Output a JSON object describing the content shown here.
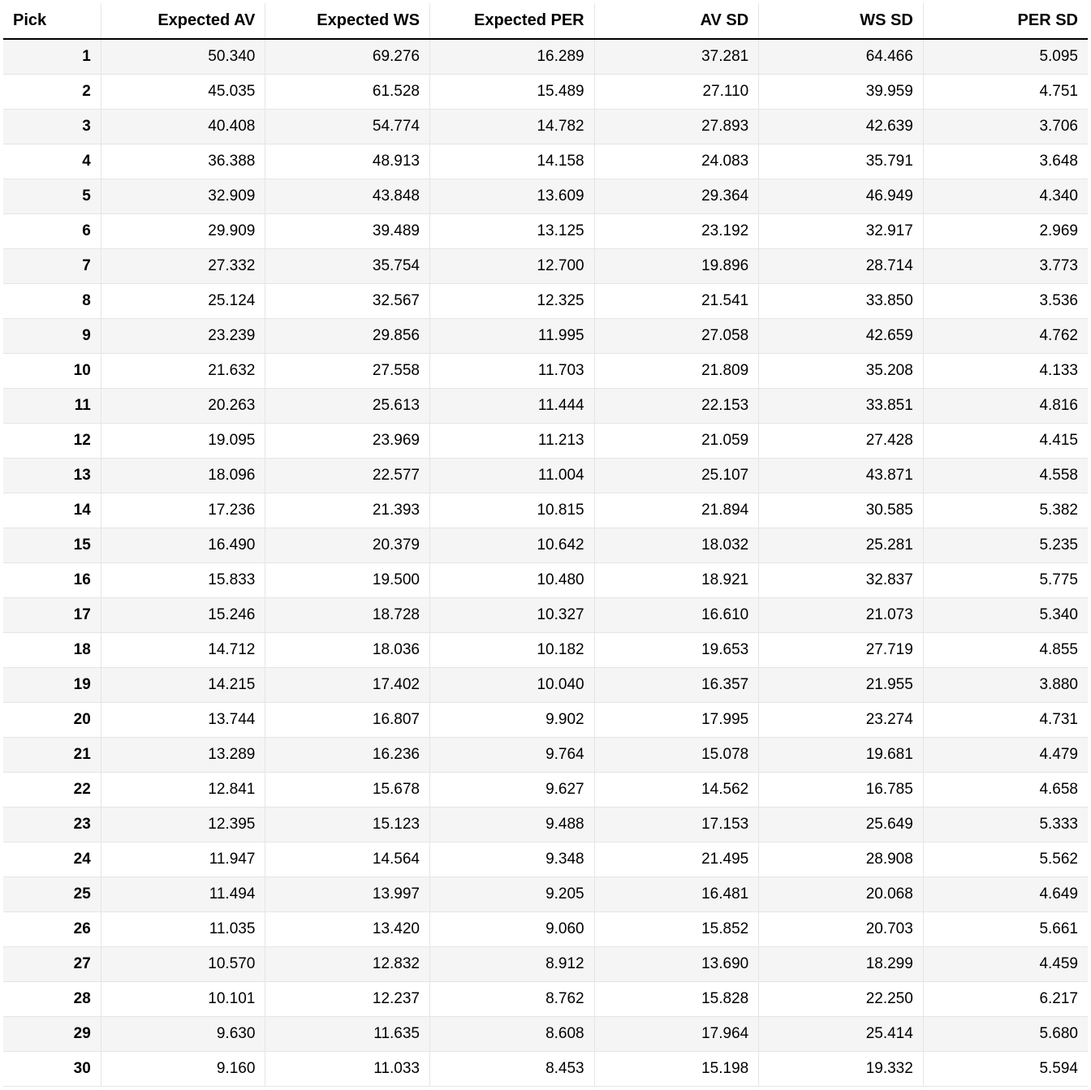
{
  "table": {
    "type": "table",
    "background_color": "#ffffff",
    "row_alt_color": "#f5f5f5",
    "border_color": "#e5e5e5",
    "header_border_bottom_color": "#000000",
    "font_family": "Helvetica",
    "header_fontsize": 20,
    "cell_fontsize": 19,
    "columns": [
      {
        "key": "pick",
        "label": "Pick",
        "align": "left",
        "width_pct": 9,
        "bold": true
      },
      {
        "key": "exp_av",
        "label": "Expected AV",
        "align": "right",
        "width_pct": 15.16
      },
      {
        "key": "exp_ws",
        "label": "Expected WS",
        "align": "right",
        "width_pct": 15.16
      },
      {
        "key": "exp_per",
        "label": "Expected PER",
        "align": "right",
        "width_pct": 15.16
      },
      {
        "key": "av_sd",
        "label": "AV SD",
        "align": "right",
        "width_pct": 15.16
      },
      {
        "key": "ws_sd",
        "label": "WS SD",
        "align": "right",
        "width_pct": 15.16
      },
      {
        "key": "per_sd",
        "label": "PER SD",
        "align": "right",
        "width_pct": 15.16
      }
    ],
    "rows": [
      [
        "1",
        "50.340",
        "69.276",
        "16.289",
        "37.281",
        "64.466",
        "5.095"
      ],
      [
        "2",
        "45.035",
        "61.528",
        "15.489",
        "27.110",
        "39.959",
        "4.751"
      ],
      [
        "3",
        "40.408",
        "54.774",
        "14.782",
        "27.893",
        "42.639",
        "3.706"
      ],
      [
        "4",
        "36.388",
        "48.913",
        "14.158",
        "24.083",
        "35.791",
        "3.648"
      ],
      [
        "5",
        "32.909",
        "43.848",
        "13.609",
        "29.364",
        "46.949",
        "4.340"
      ],
      [
        "6",
        "29.909",
        "39.489",
        "13.125",
        "23.192",
        "32.917",
        "2.969"
      ],
      [
        "7",
        "27.332",
        "35.754",
        "12.700",
        "19.896",
        "28.714",
        "3.773"
      ],
      [
        "8",
        "25.124",
        "32.567",
        "12.325",
        "21.541",
        "33.850",
        "3.536"
      ],
      [
        "9",
        "23.239",
        "29.856",
        "11.995",
        "27.058",
        "42.659",
        "4.762"
      ],
      [
        "10",
        "21.632",
        "27.558",
        "11.703",
        "21.809",
        "35.208",
        "4.133"
      ],
      [
        "11",
        "20.263",
        "25.613",
        "11.444",
        "22.153",
        "33.851",
        "4.816"
      ],
      [
        "12",
        "19.095",
        "23.969",
        "11.213",
        "21.059",
        "27.428",
        "4.415"
      ],
      [
        "13",
        "18.096",
        "22.577",
        "11.004",
        "25.107",
        "43.871",
        "4.558"
      ],
      [
        "14",
        "17.236",
        "21.393",
        "10.815",
        "21.894",
        "30.585",
        "5.382"
      ],
      [
        "15",
        "16.490",
        "20.379",
        "10.642",
        "18.032",
        "25.281",
        "5.235"
      ],
      [
        "16",
        "15.833",
        "19.500",
        "10.480",
        "18.921",
        "32.837",
        "5.775"
      ],
      [
        "17",
        "15.246",
        "18.728",
        "10.327",
        "16.610",
        "21.073",
        "5.340"
      ],
      [
        "18",
        "14.712",
        "18.036",
        "10.182",
        "19.653",
        "27.719",
        "4.855"
      ],
      [
        "19",
        "14.215",
        "17.402",
        "10.040",
        "16.357",
        "21.955",
        "3.880"
      ],
      [
        "20",
        "13.744",
        "16.807",
        "9.902",
        "17.995",
        "23.274",
        "4.731"
      ],
      [
        "21",
        "13.289",
        "16.236",
        "9.764",
        "15.078",
        "19.681",
        "4.479"
      ],
      [
        "22",
        "12.841",
        "15.678",
        "9.627",
        "14.562",
        "16.785",
        "4.658"
      ],
      [
        "23",
        "12.395",
        "15.123",
        "9.488",
        "17.153",
        "25.649",
        "5.333"
      ],
      [
        "24",
        "11.947",
        "14.564",
        "9.348",
        "21.495",
        "28.908",
        "5.562"
      ],
      [
        "25",
        "11.494",
        "13.997",
        "9.205",
        "16.481",
        "20.068",
        "4.649"
      ],
      [
        "26",
        "11.035",
        "13.420",
        "9.060",
        "15.852",
        "20.703",
        "5.661"
      ],
      [
        "27",
        "10.570",
        "12.832",
        "8.912",
        "13.690",
        "18.299",
        "4.459"
      ],
      [
        "28",
        "10.101",
        "12.237",
        "8.762",
        "15.828",
        "22.250",
        "6.217"
      ],
      [
        "29",
        "9.630",
        "11.635",
        "8.608",
        "17.964",
        "25.414",
        "5.680"
      ],
      [
        "30",
        "9.160",
        "11.033",
        "8.453",
        "15.198",
        "19.332",
        "5.594"
      ]
    ]
  }
}
